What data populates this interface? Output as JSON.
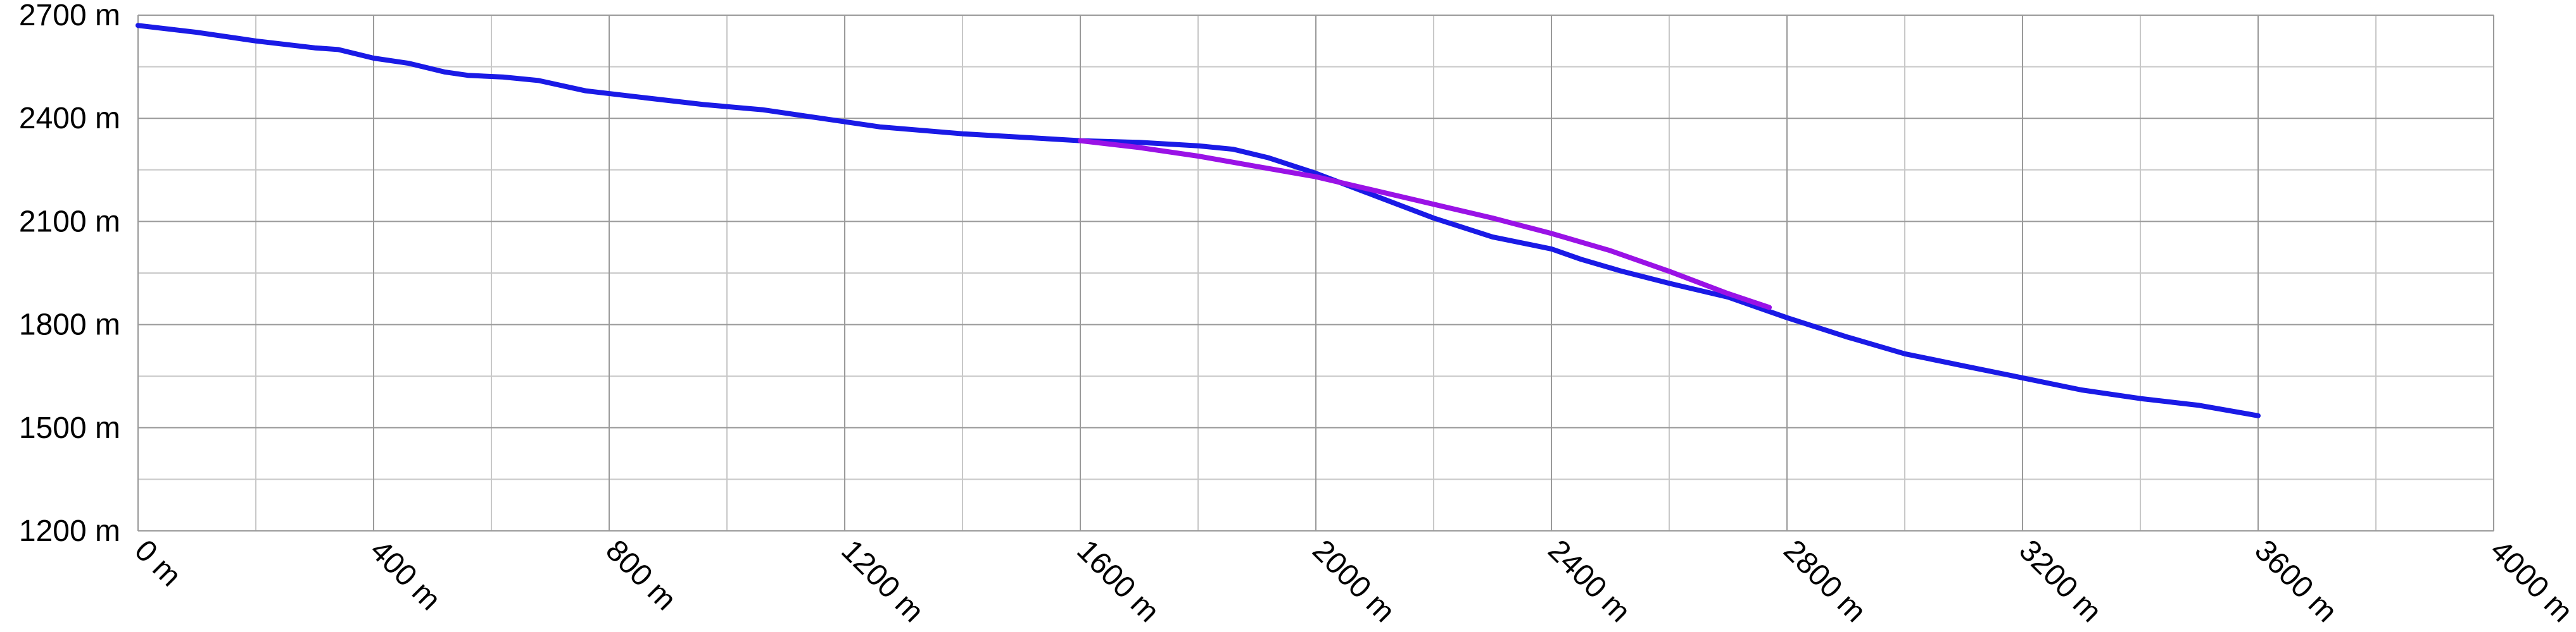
{
  "chart_data": {
    "type": "line",
    "title": "",
    "xlabel": "",
    "ylabel": "",
    "xlim": [
      0,
      4000
    ],
    "ylim": [
      1200,
      2700
    ],
    "grid": true,
    "legend": "none",
    "x_ticks": [
      {
        "value": 0,
        "label": "0 m"
      },
      {
        "value": 400,
        "label": "400 m"
      },
      {
        "value": 800,
        "label": "800 m"
      },
      {
        "value": 1200,
        "label": "1200 m"
      },
      {
        "value": 1600,
        "label": "1600 m"
      },
      {
        "value": 2000,
        "label": "2000 m"
      },
      {
        "value": 2400,
        "label": "2400 m"
      },
      {
        "value": 2800,
        "label": "2800 m"
      },
      {
        "value": 3200,
        "label": "3200 m"
      },
      {
        "value": 3600,
        "label": "3600 m"
      },
      {
        "value": 4000,
        "label": "4000 m"
      }
    ],
    "y_ticks": [
      {
        "value": 1200,
        "label": "1200 m"
      },
      {
        "value": 1500,
        "label": "1500 m"
      },
      {
        "value": 1800,
        "label": "1800 m"
      },
      {
        "value": 2100,
        "label": "2100 m"
      },
      {
        "value": 2400,
        "label": "2400 m"
      },
      {
        "value": 2700,
        "label": "2700 m"
      }
    ],
    "series": [
      {
        "color": "#1a1ae6",
        "points": [
          [
            0,
            2670
          ],
          [
            100,
            2650
          ],
          [
            200,
            2625
          ],
          [
            300,
            2605
          ],
          [
            340,
            2600
          ],
          [
            400,
            2575
          ],
          [
            460,
            2560
          ],
          [
            520,
            2535
          ],
          [
            560,
            2525
          ],
          [
            620,
            2520
          ],
          [
            680,
            2510
          ],
          [
            760,
            2480
          ],
          [
            860,
            2460
          ],
          [
            960,
            2440
          ],
          [
            1060,
            2425
          ],
          [
            1160,
            2400
          ],
          [
            1260,
            2375
          ],
          [
            1400,
            2355
          ],
          [
            1500,
            2345
          ],
          [
            1600,
            2335
          ],
          [
            1700,
            2330
          ],
          [
            1800,
            2320
          ],
          [
            1860,
            2310
          ],
          [
            1920,
            2285
          ],
          [
            2000,
            2240
          ],
          [
            2100,
            2175
          ],
          [
            2200,
            2110
          ],
          [
            2300,
            2055
          ],
          [
            2400,
            2020
          ],
          [
            2450,
            1990
          ],
          [
            2520,
            1955
          ],
          [
            2600,
            1920
          ],
          [
            2700,
            1880
          ],
          [
            2800,
            1820
          ],
          [
            2900,
            1765
          ],
          [
            3000,
            1715
          ],
          [
            3100,
            1680
          ],
          [
            3200,
            1645
          ],
          [
            3300,
            1610
          ],
          [
            3400,
            1585
          ],
          [
            3500,
            1565
          ],
          [
            3600,
            1535
          ]
        ]
      },
      {
        "color": "#9a12e6",
        "points": [
          [
            1600,
            2335
          ],
          [
            1700,
            2315
          ],
          [
            1800,
            2290
          ],
          [
            1900,
            2260
          ],
          [
            2000,
            2230
          ],
          [
            2100,
            2190
          ],
          [
            2200,
            2150
          ],
          [
            2300,
            2110
          ],
          [
            2400,
            2065
          ],
          [
            2500,
            2015
          ],
          [
            2600,
            1955
          ],
          [
            2700,
            1890
          ],
          [
            2770,
            1850
          ]
        ]
      }
    ]
  }
}
